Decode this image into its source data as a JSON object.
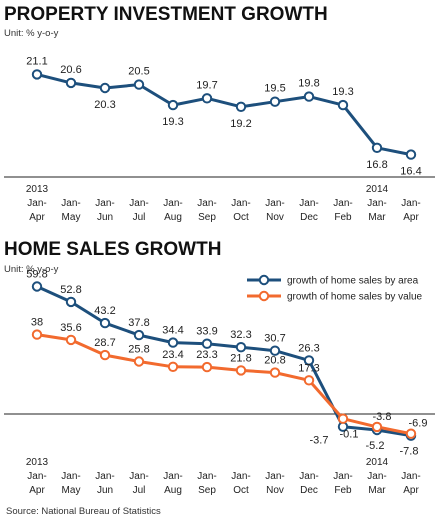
{
  "chart_data": [
    {
      "type": "line",
      "title": "PROPERTY INVESTMENT GROWTH",
      "unit": "Unit: % y-o-y",
      "year_labels": [
        {
          "index": 0,
          "label": "2013"
        },
        {
          "index": 10,
          "label": "2014"
        }
      ],
      "categories": [
        [
          "Jan-",
          "Apr"
        ],
        [
          "Jan-",
          "May"
        ],
        [
          "Jan-",
          "Jun"
        ],
        [
          "Jan-",
          "Jul"
        ],
        [
          "Jan-",
          "Aug"
        ],
        [
          "Jan-",
          "Sep"
        ],
        [
          "Jan-",
          "Oct"
        ],
        [
          "Jan-",
          "Nov"
        ],
        [
          "Jan-",
          "Dec"
        ],
        [
          "Jan-",
          "Feb"
        ],
        [
          "Jan-",
          "Mar"
        ],
        [
          "Jan-",
          "Apr"
        ]
      ],
      "series": [
        {
          "color": "#1d4f7c",
          "values": [
            21.1,
            20.6,
            20.3,
            20.5,
            19.3,
            19.7,
            19.2,
            19.5,
            19.8,
            19.3,
            16.8,
            16.4
          ],
          "labels": [
            "21.1",
            "20.6",
            "20.3",
            "20.5",
            "19.3",
            "19.7",
            "19.2",
            "19.5",
            "19.8",
            "19.3",
            "16.8",
            "16.4"
          ]
        }
      ],
      "ylim": [
        15.5,
        22
      ]
    },
    {
      "type": "line",
      "title": "HOME SALES GROWTH",
      "unit": "Unit: % y-o-y",
      "legend_position": "top-right",
      "year_labels": [
        {
          "index": 0,
          "label": "2013"
        },
        {
          "index": 10,
          "label": "2014"
        }
      ],
      "categories": [
        [
          "Jan-",
          "Apr"
        ],
        [
          "Jan-",
          "May"
        ],
        [
          "Jan-",
          "Jun"
        ],
        [
          "Jan-",
          "Jul"
        ],
        [
          "Jan-",
          "Aug"
        ],
        [
          "Jan-",
          "Sep"
        ],
        [
          "Jan-",
          "Oct"
        ],
        [
          "Jan-",
          "Nov"
        ],
        [
          "Jan-",
          "Dec"
        ],
        [
          "Jan-",
          "Feb"
        ],
        [
          "Jan-",
          "Mar"
        ],
        [
          "Jan-",
          "Apr"
        ]
      ],
      "series": [
        {
          "name": "growth of home sales by area",
          "color": "#1d4f7c",
          "values": [
            59.8,
            52.8,
            43.2,
            37.8,
            34.4,
            33.9,
            32.3,
            30.7,
            26.3,
            -3.7,
            -5.2,
            -7.8
          ],
          "labels": [
            "59.8",
            "52.8",
            "43.2",
            "37.8",
            "34.4",
            "33.9",
            "32.3",
            "30.7",
            "26.3",
            "-3.7",
            "-5.2",
            "-7.8"
          ]
        },
        {
          "name": "growth of home sales by value",
          "color": "#f26a2e",
          "values": [
            38,
            35.6,
            28.7,
            25.8,
            23.4,
            23.3,
            21.8,
            20.8,
            17.3,
            -0.1,
            -3.8,
            -6.9
          ],
          "labels": [
            "38",
            "35.6",
            "28.7",
            "25.8",
            "23.4",
            "23.3",
            "21.8",
            "20.8",
            "17.3",
            "-0.1",
            "-3.8",
            "-6.9"
          ]
        }
      ],
      "ylim": [
        -12,
        65
      ]
    }
  ],
  "source": "Source: National Bureau of Statistics"
}
